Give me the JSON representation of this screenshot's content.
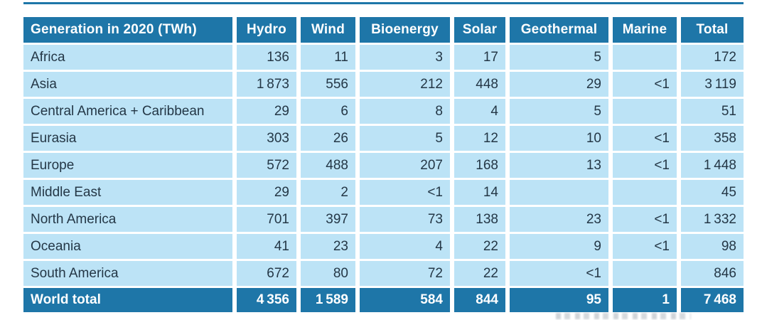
{
  "colors": {
    "header_bg": "#1E76A8",
    "row_bg": "#BCE3F6",
    "text": "#243746",
    "header_text": "#FFFFFF"
  },
  "chart_data": {
    "type": "table",
    "title": "Generation in 2020 (TWh)",
    "columns": [
      "Hydro",
      "Wind",
      "Bioenergy",
      "Solar",
      "Geothermal",
      "Marine",
      "Total"
    ],
    "rows": [
      {
        "region": "Africa",
        "values": [
          "136",
          "11",
          "3",
          "17",
          "5",
          "",
          "172"
        ]
      },
      {
        "region": "Asia",
        "values": [
          "1 873",
          "556",
          "212",
          "448",
          "29",
          "<1",
          "3 119"
        ]
      },
      {
        "region": "Central America + Caribbean",
        "values": [
          "29",
          "6",
          "8",
          "4",
          "5",
          "",
          "51"
        ]
      },
      {
        "region": "Eurasia",
        "values": [
          "303",
          "26",
          "5",
          "12",
          "10",
          "<1",
          "358"
        ]
      },
      {
        "region": "Europe",
        "values": [
          "572",
          "488",
          "207",
          "168",
          "13",
          "<1",
          "1 448"
        ]
      },
      {
        "region": "Middle East",
        "values": [
          "29",
          "2",
          "<1",
          "14",
          "",
          "",
          "45"
        ]
      },
      {
        "region": "North America",
        "values": [
          "701",
          "397",
          "73",
          "138",
          "23",
          "<1",
          "1 332"
        ]
      },
      {
        "region": "Oceania",
        "values": [
          "41",
          "23",
          "4",
          "22",
          "9",
          "<1",
          "98"
        ]
      },
      {
        "region": "South America",
        "values": [
          "672",
          "80",
          "72",
          "22",
          "<1",
          "",
          "846"
        ]
      },
      {
        "region": "World total",
        "values": [
          "4 356",
          "1 589",
          "584",
          "844",
          "95",
          "1",
          "7 468"
        ]
      }
    ]
  }
}
